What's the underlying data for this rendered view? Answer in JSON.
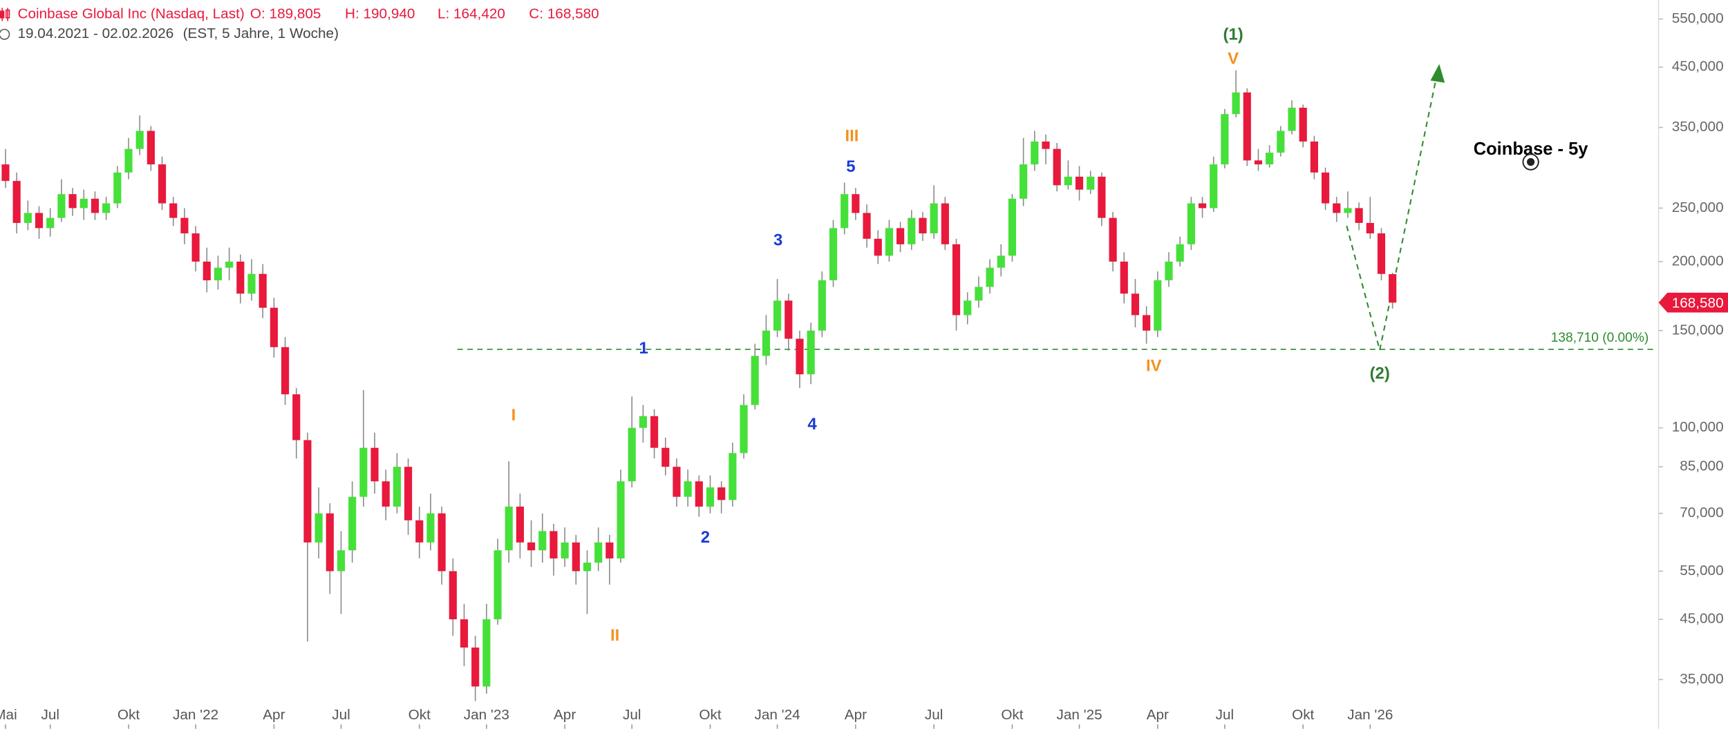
{
  "chart_data": {
    "type": "candlestick",
    "title": "Coinbase Global Inc (Nasdaq, Last)",
    "header_stats": [
      "O: 189,805",
      "H: 190,940",
      "L: 164,420",
      "C: 168,580"
    ],
    "date_range": "19.04.2021 - 02.02.2026",
    "period_info": "(EST, 5 Jahre, 1 Woche)",
    "chart_label": "Coinbase - 5y",
    "log_scale": true,
    "up_color": "#46e03a",
    "down_color": "#e8193c",
    "wick_color": "#8a8a8a",
    "ylim": [
      28500,
      595000
    ],
    "yticks": [
      {
        "value": 550000,
        "label": "550,000"
      },
      {
        "value": 450000,
        "label": "450,000"
      },
      {
        "value": 350000,
        "label": "350,000"
      },
      {
        "value": 250000,
        "label": "250,000"
      },
      {
        "value": 200000,
        "label": "200,000"
      },
      {
        "value": 150000,
        "label": "150,000"
      },
      {
        "value": 100000,
        "label": "100,000"
      },
      {
        "value": 85000,
        "label": "85,000"
      },
      {
        "value": 70000,
        "label": "70,000"
      },
      {
        "value": 55000,
        "label": "55,000"
      },
      {
        "value": 45000,
        "label": "45,000"
      },
      {
        "value": 35000,
        "label": "35,000"
      }
    ],
    "categories": [
      "Mai",
      null,
      null,
      null,
      "Jul",
      null,
      null,
      null,
      null,
      null,
      null,
      "Okt",
      null,
      null,
      null,
      null,
      null,
      "Jan '22",
      null,
      null,
      null,
      null,
      null,
      null,
      "Apr",
      null,
      null,
      null,
      null,
      null,
      "Jul",
      null,
      null,
      null,
      null,
      null,
      null,
      "Okt",
      null,
      null,
      null,
      null,
      null,
      "Jan '23",
      null,
      null,
      null,
      null,
      null,
      null,
      "Apr",
      null,
      null,
      null,
      null,
      null,
      "Jul",
      null,
      null,
      null,
      null,
      null,
      null,
      "Okt",
      null,
      null,
      null,
      null,
      null,
      "Jan '24",
      null,
      null,
      null,
      null,
      null,
      null,
      "Apr",
      null,
      null,
      null,
      null,
      null,
      null,
      "Jul",
      null,
      null,
      null,
      null,
      null,
      null,
      "Okt",
      null,
      null,
      null,
      null,
      null,
      "Jan '25",
      null,
      null,
      null,
      null,
      null,
      null,
      "Apr",
      null,
      null,
      null,
      null,
      null,
      "Jul",
      null,
      null,
      null,
      null,
      null,
      null,
      "Okt",
      null,
      null,
      null,
      null,
      null,
      "Jan '26",
      null,
      null
    ],
    "open": [
      300000,
      280000,
      235000,
      245000,
      230000,
      240000,
      265000,
      250000,
      260000,
      245000,
      255000,
      290000,
      320000,
      345000,
      300000,
      255000,
      240000,
      225000,
      200000,
      185000,
      195000,
      200000,
      175000,
      190000,
      165000,
      140000,
      115000,
      95000,
      62000,
      70000,
      55000,
      60000,
      75000,
      92000,
      80000,
      72000,
      85000,
      68000,
      62000,
      70000,
      55000,
      45000,
      40000,
      34000,
      45000,
      60000,
      72000,
      62000,
      60000,
      65000,
      58000,
      62000,
      55000,
      57000,
      62000,
      58000,
      80000,
      100000,
      105000,
      92000,
      85000,
      75000,
      80000,
      72000,
      78000,
      74000,
      90000,
      110000,
      135000,
      150000,
      170000,
      145000,
      125000,
      150000,
      185000,
      230000,
      265000,
      245000,
      220000,
      205000,
      230000,
      215000,
      240000,
      225000,
      255000,
      215000,
      160000,
      170000,
      180000,
      195000,
      205000,
      260000,
      300000,
      330000,
      320000,
      275000,
      285000,
      270000,
      285000,
      240000,
      200000,
      175000,
      160000,
      150000,
      185000,
      200000,
      215000,
      255000,
      250000,
      300000,
      370000,
      405000,
      305000,
      300000,
      315000,
      345000,
      380000,
      330000,
      290000,
      255000,
      245000,
      250000,
      235000,
      225000,
      189805
    ],
    "high": [
      320000,
      290000,
      258000,
      252000,
      250000,
      282000,
      272000,
      270000,
      268000,
      262000,
      298000,
      335000,
      368000,
      352000,
      310000,
      262000,
      250000,
      232000,
      212000,
      205000,
      212000,
      206000,
      202000,
      198000,
      172000,
      146000,
      118000,
      98000,
      78000,
      73000,
      65000,
      80000,
      117000,
      98000,
      84000,
      90000,
      88000,
      72000,
      76000,
      72000,
      58000,
      48000,
      42000,
      48000,
      63000,
      87000,
      76000,
      68000,
      70000,
      67000,
      66000,
      64000,
      60000,
      66000,
      64000,
      84000,
      114000,
      110000,
      108000,
      96000,
      88000,
      84000,
      82000,
      82000,
      80000,
      94000,
      115000,
      142000,
      160000,
      186000,
      175000,
      150000,
      155000,
      192000,
      238000,
      278000,
      272000,
      254000,
      228000,
      238000,
      236000,
      248000,
      246000,
      275000,
      262000,
      220000,
      176000,
      188000,
      202000,
      215000,
      265000,
      335000,
      345000,
      340000,
      328000,
      305000,
      298000,
      292000,
      290000,
      246000,
      208000,
      186000,
      166000,
      192000,
      208000,
      222000,
      262000,
      262000,
      310000,
      378000,
      444000,
      412000,
      320000,
      325000,
      352000,
      392000,
      385000,
      338000,
      296000,
      262000,
      268000,
      256000,
      262000,
      230000,
      190940
    ],
    "low": [
      272000,
      225000,
      228000,
      220000,
      222000,
      236000,
      242000,
      238000,
      238000,
      238000,
      250000,
      282000,
      312000,
      292000,
      248000,
      232000,
      215000,
      192000,
      176000,
      178000,
      185000,
      168000,
      170000,
      158000,
      134000,
      110000,
      88000,
      41000,
      58000,
      50000,
      46000,
      57000,
      72000,
      76000,
      68000,
      70000,
      64000,
      58000,
      60000,
      52000,
      42000,
      37000,
      32000,
      33000,
      44000,
      57000,
      58000,
      56000,
      57000,
      54000,
      56000,
      52000,
      46000,
      55000,
      52000,
      57000,
      78000,
      94000,
      88000,
      82000,
      72000,
      72000,
      69000,
      70000,
      70000,
      72000,
      88000,
      108000,
      130000,
      146000,
      138000,
      118000,
      120000,
      146000,
      180000,
      224000,
      238000,
      212000,
      198000,
      200000,
      208000,
      210000,
      218000,
      220000,
      210000,
      150000,
      154000,
      165000,
      175000,
      188000,
      200000,
      252000,
      292000,
      300000,
      268000,
      270000,
      258000,
      265000,
      232000,
      192000,
      168000,
      152000,
      142000,
      146000,
      180000,
      196000,
      210000,
      240000,
      246000,
      295000,
      365000,
      298000,
      292000,
      296000,
      310000,
      340000,
      322000,
      282000,
      248000,
      236000,
      240000,
      228000,
      220000,
      185000,
      164420
    ],
    "close": [
      280000,
      235000,
      245000,
      230000,
      240000,
      265000,
      250000,
      260000,
      245000,
      255000,
      290000,
      320000,
      345000,
      300000,
      255000,
      240000,
      225000,
      200000,
      185000,
      195000,
      200000,
      175000,
      190000,
      165000,
      140000,
      115000,
      95000,
      62000,
      70000,
      55000,
      60000,
      75000,
      92000,
      80000,
      72000,
      85000,
      68000,
      62000,
      70000,
      55000,
      45000,
      40000,
      34000,
      45000,
      60000,
      72000,
      62000,
      60000,
      65000,
      58000,
      62000,
      55000,
      57000,
      62000,
      58000,
      80000,
      100000,
      105000,
      92000,
      85000,
      75000,
      80000,
      72000,
      78000,
      74000,
      90000,
      110000,
      135000,
      150000,
      170000,
      145000,
      125000,
      150000,
      185000,
      230000,
      265000,
      245000,
      220000,
      205000,
      230000,
      215000,
      240000,
      225000,
      255000,
      215000,
      160000,
      170000,
      180000,
      195000,
      205000,
      260000,
      300000,
      330000,
      320000,
      275000,
      285000,
      270000,
      285000,
      240000,
      200000,
      175000,
      160000,
      150000,
      185000,
      200000,
      215000,
      255000,
      250000,
      300000,
      370000,
      405000,
      305000,
      300000,
      315000,
      345000,
      380000,
      330000,
      290000,
      255000,
      245000,
      250000,
      235000,
      225000,
      190000,
      168580
    ],
    "last_price": {
      "value": 168580,
      "label": "168,580"
    },
    "level_line": {
      "value": 138710,
      "label": "138,710 (0.00%)",
      "color": "#2e8b2e"
    },
    "annotations": [
      {
        "text": "(1)",
        "color": "#2e7d32"
      },
      {
        "text": "V",
        "color": "#f39220"
      },
      {
        "text": "III",
        "color": "#f39220"
      },
      {
        "text": "5",
        "color": "#1a3ad6"
      },
      {
        "text": "3",
        "color": "#1a3ad6"
      },
      {
        "text": "1",
        "color": "#1a3ad6"
      },
      {
        "text": "4",
        "color": "#1a3ad6"
      },
      {
        "text": "2",
        "color": "#1a3ad6"
      },
      {
        "text": "I",
        "color": "#f39220"
      },
      {
        "text": "II",
        "color": "#f39220"
      },
      {
        "text": "IV",
        "color": "#f39220"
      },
      {
        "text": "(2)",
        "color": "#2e7d32"
      }
    ]
  }
}
